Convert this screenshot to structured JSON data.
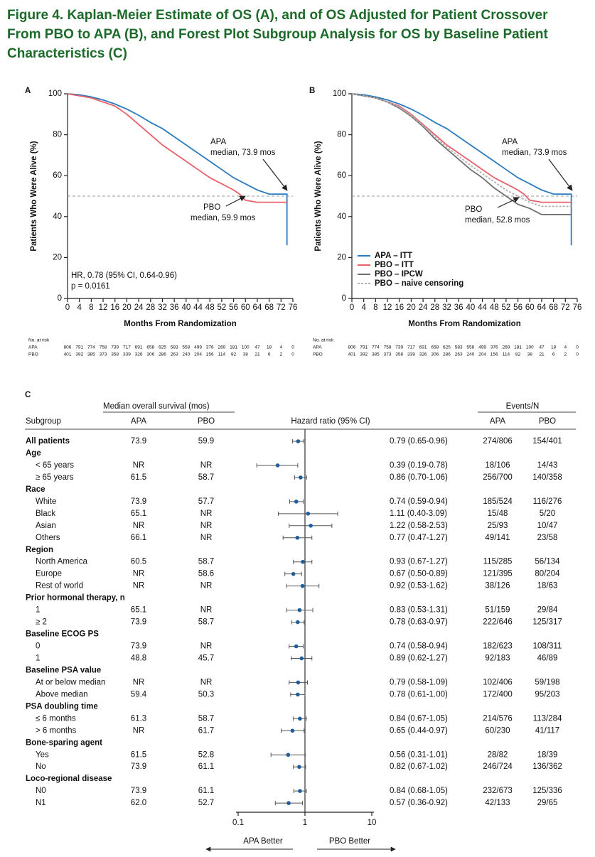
{
  "title": [
    "Figure 4. Kaplan-Meier Estimate of OS (A), and of OS Adjusted for Patient Crossover",
    "From PBO to APA (B), and Forest Plot Subgroup Analysis for OS by Baseline Patient",
    "Characteristics (C)"
  ],
  "chart_data": [
    {
      "type": "km",
      "panel": "A",
      "ylabel": "Patients Who Were Alive (%)",
      "xlabel": "Months From Randomization",
      "xlim": [
        0,
        76
      ],
      "xticks": [
        0,
        4,
        8,
        12,
        16,
        20,
        24,
        28,
        32,
        36,
        40,
        44,
        48,
        52,
        56,
        60,
        64,
        68,
        72,
        76
      ],
      "ylim": [
        0,
        100
      ],
      "yticks": [
        0,
        20,
        40,
        60,
        80,
        100
      ],
      "reference_line": 50,
      "series": [
        {
          "name": "APA",
          "color": "#2b7bbf",
          "x": [
            0,
            4,
            8,
            12,
            16,
            20,
            24,
            28,
            32,
            36,
            40,
            44,
            48,
            52,
            56,
            60,
            64,
            68,
            74,
            74
          ],
          "values": [
            100,
            99.5,
            98.5,
            97,
            95,
            92.5,
            89.5,
            86,
            83,
            79,
            75,
            71,
            67,
            63,
            59,
            56,
            53,
            51,
            51,
            26
          ]
        },
        {
          "name": "PBO",
          "color": "#e8606a",
          "x": [
            0,
            4,
            8,
            12,
            16,
            20,
            24,
            28,
            32,
            36,
            40,
            44,
            48,
            52,
            56,
            58,
            60,
            64,
            74
          ],
          "values": [
            100,
            99,
            98,
            96,
            94,
            90,
            85,
            80,
            75,
            71,
            67,
            63,
            59,
            56,
            53,
            51,
            48,
            47,
            47
          ]
        }
      ],
      "annotations": [
        {
          "lines": [
            "APA",
            "median, 73.9 mos"
          ]
        },
        {
          "lines": [
            "PBO",
            "median, 59.9 mos"
          ]
        },
        {
          "lines": [
            "HR, 0.78 (95% CI, 0.64-0.96)",
            "p = 0.0161"
          ]
        }
      ],
      "at_risk": {
        "title": "No. at risk",
        "rows": [
          {
            "name": "APA",
            "values": [
              "806",
              "791",
              "774",
              "758",
              "739",
              "717",
              "691",
              "658",
              "625",
              "583",
              "558",
              "499",
              "376",
              "269",
              "181",
              "100",
              "47",
              "18",
              "4",
              "0"
            ]
          },
          {
            "name": "PBO",
            "values": [
              "401",
              "392",
              "385",
              "373",
              "358",
              "339",
              "326",
              "306",
              "286",
              "263",
              "240",
              "204",
              "156",
              "114",
              "82",
              "38",
              "21",
              "6",
              "2",
              "0"
            ]
          }
        ]
      }
    },
    {
      "type": "km",
      "panel": "B",
      "ylabel": "Patients Who Were Alive (%)",
      "xlabel": "Months From Randomization",
      "xlim": [
        0,
        76
      ],
      "xticks": [
        0,
        4,
        8,
        12,
        16,
        20,
        24,
        28,
        32,
        36,
        40,
        44,
        48,
        52,
        56,
        60,
        64,
        68,
        72,
        76
      ],
      "ylim": [
        0,
        100
      ],
      "yticks": [
        0,
        20,
        40,
        60,
        80,
        100
      ],
      "reference_line": 50,
      "legend": "lower left",
      "series": [
        {
          "name": "APA – ITT",
          "color": "#2b7bbf",
          "x": [
            0,
            4,
            8,
            12,
            16,
            20,
            24,
            28,
            32,
            36,
            40,
            44,
            48,
            52,
            56,
            60,
            64,
            68,
            74,
            74
          ],
          "values": [
            100,
            99.5,
            98.5,
            97,
            95,
            92.5,
            89.5,
            86,
            83,
            79,
            75,
            71,
            67,
            63,
            59,
            56,
            53,
            51,
            51,
            26
          ]
        },
        {
          "name": "PBO – ITT",
          "color": "#e8606a",
          "x": [
            0,
            4,
            8,
            12,
            16,
            20,
            24,
            28,
            32,
            36,
            40,
            44,
            48,
            52,
            56,
            58,
            60,
            64,
            74
          ],
          "values": [
            100,
            99,
            98,
            96,
            94,
            90,
            85,
            80,
            75,
            71,
            67,
            63,
            59,
            56,
            53,
            51,
            48,
            47,
            47
          ]
        },
        {
          "name": "PBO – IPCW",
          "color": "#707070",
          "x": [
            0,
            4,
            8,
            12,
            16,
            20,
            24,
            28,
            32,
            36,
            40,
            44,
            48,
            52,
            56,
            60,
            64,
            74
          ],
          "values": [
            100,
            99,
            98,
            96,
            93,
            89,
            84,
            78,
            73,
            68,
            63,
            59,
            54,
            50,
            46,
            44,
            41,
            41
          ]
        },
        {
          "name": "PBO – naive censoring",
          "color": "#b0b0b0",
          "dashed": true,
          "x": [
            0,
            4,
            8,
            12,
            16,
            20,
            24,
            28,
            32,
            36,
            40,
            44,
            48,
            52,
            56,
            60,
            64,
            74
          ],
          "values": [
            100,
            99,
            98,
            96,
            93.5,
            89.5,
            84.5,
            79,
            74,
            69.5,
            65,
            61,
            57,
            53,
            50,
            47,
            45,
            45
          ]
        }
      ],
      "annotations": [
        {
          "lines": [
            "APA",
            "median, 73.9 mos"
          ]
        },
        {
          "lines": [
            "PBO",
            "median, 52.8 mos"
          ]
        }
      ],
      "at_risk": {
        "title": "No. at risk",
        "rows": [
          {
            "name": "APA",
            "values": [
              "806",
              "791",
              "774",
              "758",
              "739",
              "717",
              "691",
              "658",
              "625",
              "583",
              "558",
              "499",
              "376",
              "269",
              "181",
              "100",
              "47",
              "18",
              "4",
              "0"
            ]
          },
          {
            "name": "PBO",
            "values": [
              "401",
              "392",
              "385",
              "373",
              "358",
              "339",
              "326",
              "306",
              "286",
              "263",
              "240",
              "204",
              "156",
              "114",
              "82",
              "38",
              "21",
              "6",
              "2",
              "0"
            ]
          }
        ]
      }
    },
    {
      "type": "forest",
      "panel": "C",
      "median_header": "Median overall survival (mos)",
      "subgroup_header": "Subgroup",
      "arm_headers": [
        "APA",
        "PBO"
      ],
      "hr_header": "Hazard ratio (95% CI)",
      "events_header": "Events/N",
      "events_arm_headers": [
        "APA",
        "PBO"
      ],
      "log": true,
      "xlim": [
        0.1,
        10
      ],
      "xticks": [
        0.1,
        1,
        10
      ],
      "reference_line": 1,
      "point_color": "#1f5e9c",
      "direction_labels": [
        "APA Better",
        "PBO Better"
      ],
      "rows": [
        {
          "label": "All patients",
          "apa_median": "73.9",
          "pbo_median": "59.9",
          "hr": 0.79,
          "ci": [
            0.65,
            0.96
          ],
          "hr_label": "0.79 (0.65-0.96)",
          "apa_events": "274/806",
          "pbo_events": "154/401"
        },
        {
          "heading": "Age"
        },
        {
          "label": "< 65 years",
          "apa_median": "NR",
          "pbo_median": "NR",
          "hr": 0.39,
          "ci": [
            0.19,
            0.78
          ],
          "hr_label": "0.39 (0.19-0.78)",
          "apa_events": "18/106",
          "pbo_events": "14/43"
        },
        {
          "label": "≥ 65 years",
          "apa_median": "61.5",
          "pbo_median": "58.7",
          "hr": 0.86,
          "ci": [
            0.7,
            1.06
          ],
          "hr_label": "0.86 (0.70-1.06)",
          "apa_events": "256/700",
          "pbo_events": "140/358"
        },
        {
          "heading": "Race"
        },
        {
          "label": "White",
          "apa_median": "73.9",
          "pbo_median": "57.7",
          "hr": 0.74,
          "ci": [
            0.59,
            0.94
          ],
          "hr_label": "0.74 (0.59-0.94)",
          "apa_events": "185/524",
          "pbo_events": "116/276"
        },
        {
          "label": "Black",
          "apa_median": "65.1",
          "pbo_median": "NR",
          "hr": 1.11,
          "ci": [
            0.4,
            3.09
          ],
          "hr_label": "1.11 (0.40-3.09)",
          "apa_events": "15/48",
          "pbo_events": "5/20"
        },
        {
          "label": "Asian",
          "apa_median": "NR",
          "pbo_median": "NR",
          "hr": 1.22,
          "ci": [
            0.58,
            2.53
          ],
          "hr_label": "1.22 (0.58-2.53)",
          "apa_events": "25/93",
          "pbo_events": "10/47"
        },
        {
          "label": "Others",
          "apa_median": "66.1",
          "pbo_median": "NR",
          "hr": 0.77,
          "ci": [
            0.47,
            1.27
          ],
          "hr_label": "0.77 (0.47-1.27)",
          "apa_events": "49/141",
          "pbo_events": "23/58"
        },
        {
          "heading": "Region"
        },
        {
          "label": "North America",
          "apa_median": "60.5",
          "pbo_median": "58.7",
          "hr": 0.93,
          "ci": [
            0.67,
            1.27
          ],
          "hr_label": "0.93 (0.67-1.27)",
          "apa_events": "115/285",
          "pbo_events": "56/134"
        },
        {
          "label": "Europe",
          "apa_median": "NR",
          "pbo_median": "58.6",
          "hr": 0.67,
          "ci": [
            0.5,
            0.89
          ],
          "hr_label": "0.67 (0.50-0.89)",
          "apa_events": "121/395",
          "pbo_events": "80/204"
        },
        {
          "label": "Rest of world",
          "apa_median": "NR",
          "pbo_median": "NR",
          "hr": 0.92,
          "ci": [
            0.53,
            1.62
          ],
          "hr_label": "0.92 (0.53-1.62)",
          "apa_events": "38/126",
          "pbo_events": "18/63"
        },
        {
          "heading": "Prior hormonal therapy, n"
        },
        {
          "label": "1",
          "apa_median": "65.1",
          "pbo_median": "NR",
          "hr": 0.83,
          "ci": [
            0.53,
            1.31
          ],
          "hr_label": "0.83 (0.53-1.31)",
          "apa_events": "51/159",
          "pbo_events": "29/84"
        },
        {
          "label": "≥ 2",
          "apa_median": "73.9",
          "pbo_median": "58.7",
          "hr": 0.78,
          "ci": [
            0.63,
            0.97
          ],
          "hr_label": "0.78 (0.63-0.97)",
          "apa_events": "222/646",
          "pbo_events": "125/317"
        },
        {
          "heading": "Baseline ECOG PS"
        },
        {
          "label": "0",
          "apa_median": "73.9",
          "pbo_median": "NR",
          "hr": 0.74,
          "ci": [
            0.58,
            0.94
          ],
          "hr_label": "0.74 (0.58-0.94)",
          "apa_events": "182/623",
          "pbo_events": "108/311"
        },
        {
          "label": "1",
          "apa_median": "48.8",
          "pbo_median": "45.7",
          "hr": 0.89,
          "ci": [
            0.62,
            1.27
          ],
          "hr_label": "0.89 (0.62-1.27)",
          "apa_events": "92/183",
          "pbo_events": "46/89"
        },
        {
          "heading": "Baseline PSA value"
        },
        {
          "label": "At or below median",
          "apa_median": "NR",
          "pbo_median": "NR",
          "hr": 0.79,
          "ci": [
            0.58,
            1.09
          ],
          "hr_label": "0.79 (0.58-1.09)",
          "apa_events": "102/406",
          "pbo_events": "59/198"
        },
        {
          "label": "Above median",
          "apa_median": "59.4",
          "pbo_median": "50.3",
          "hr": 0.78,
          "ci": [
            0.61,
            1.0
          ],
          "hr_label": "0.78 (0.61-1.00)",
          "apa_events": "172/400",
          "pbo_events": "95/203"
        },
        {
          "heading": "PSA doubling time"
        },
        {
          "label": "≤ 6 months",
          "apa_median": "61.3",
          "pbo_median": "58.7",
          "hr": 0.84,
          "ci": [
            0.67,
            1.05
          ],
          "hr_label": "0.84 (0.67-1.05)",
          "apa_events": "214/576",
          "pbo_events": "113/284"
        },
        {
          "label": "> 6 months",
          "apa_median": "NR",
          "pbo_median": "61.7",
          "hr": 0.65,
          "ci": [
            0.44,
            0.97
          ],
          "hr_label": "0.65 (0.44-0.97)",
          "apa_events": "60/230",
          "pbo_events": "41/117"
        },
        {
          "heading": "Bone-sparing agent"
        },
        {
          "label": "Yes",
          "apa_median": "61.5",
          "pbo_median": "52.8",
          "hr": 0.56,
          "ci": [
            0.31,
            1.01
          ],
          "hr_label": "0.56 (0.31-1.01)",
          "apa_events": "28/82",
          "pbo_events": "18/39"
        },
        {
          "label": "No",
          "apa_median": "73.9",
          "pbo_median": "61.1",
          "hr": 0.82,
          "ci": [
            0.67,
            1.02
          ],
          "hr_label": "0.82 (0.67-1.02)",
          "apa_events": "246/724",
          "pbo_events": "136/362"
        },
        {
          "heading": "Loco-regional disease"
        },
        {
          "label": "N0",
          "apa_median": "73.9",
          "pbo_median": "61.1",
          "hr": 0.84,
          "ci": [
            0.68,
            1.05
          ],
          "hr_label": "0.84 (0.68-1.05)",
          "apa_events": "232/673",
          "pbo_events": "125/336"
        },
        {
          "label": "N1",
          "apa_median": "62.0",
          "pbo_median": "52.7",
          "hr": 0.57,
          "ci": [
            0.36,
            0.92
          ],
          "hr_label": "0.57 (0.36-0.92)",
          "apa_events": "42/133",
          "pbo_events": "29/65"
        }
      ]
    }
  ]
}
